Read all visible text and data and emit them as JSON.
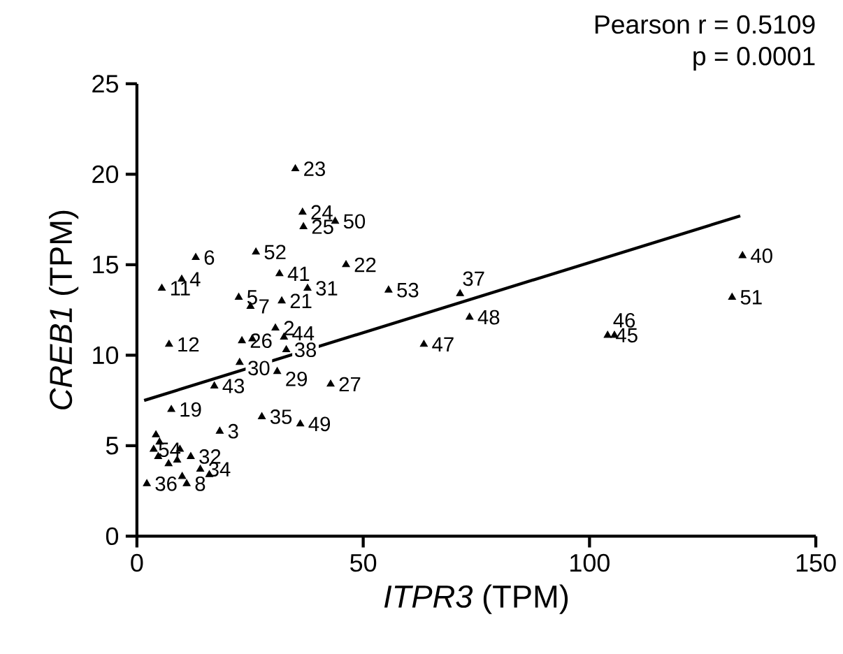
{
  "chart_data": {
    "type": "scatter",
    "xlabel": "*ITPR3* (TPM)",
    "ylabel": "*CREB1* (TPM)",
    "xlim": [
      0,
      150
    ],
    "xticks": [
      0,
      50,
      100,
      150
    ],
    "ylim": [
      0,
      25
    ],
    "yticks": [
      0,
      5,
      10,
      15,
      20,
      25
    ],
    "grid": false,
    "marker": "triangle",
    "series": [
      {
        "color": "#000000",
        "x": [
          35.0,
          36.6,
          36.8,
          43.8,
          13.0,
          26.3,
          31.5,
          46.2,
          5.5,
          9.9,
          22.5,
          25.1,
          32.0,
          37.7,
          30.6,
          32.5,
          7.1,
          23.2,
          25.5,
          17.1,
          22.7,
          31.0,
          33.0,
          7.6,
          18.3,
          27.6,
          36.1,
          55.6,
          71.4,
          73.5,
          63.4,
          42.8,
          133.8,
          131.5,
          104.0,
          105.5,
          4.2,
          11.9,
          14.0,
          11.0,
          2.2,
          10.0,
          3.7,
          4.7,
          8.9,
          16.0,
          5.0,
          9.5,
          7.0
        ],
        "values": [
          20.3,
          17.9,
          17.1,
          17.4,
          15.4,
          15.7,
          14.5,
          15.0,
          13.7,
          14.2,
          13.2,
          12.7,
          13.0,
          13.7,
          11.5,
          11.0,
          10.6,
          10.8,
          10.9,
          8.3,
          9.6,
          9.1,
          10.3,
          7.0,
          5.8,
          6.6,
          6.2,
          13.6,
          13.4,
          12.1,
          10.6,
          8.4,
          15.5,
          13.2,
          11.1,
          11.1,
          5.6,
          4.4,
          3.7,
          2.9,
          2.9,
          3.3,
          4.8,
          4.4,
          4.2,
          3.4,
          5.2,
          4.8,
          4.0
        ]
      },
      {
        "type": "line",
        "color": "#000000",
        "line_style": "solid",
        "marker": "none",
        "x": [
          1.6,
          133.3
        ],
        "values": [
          7.5,
          17.7
        ]
      }
    ],
    "annotations": [
      "Pearson r = 0.5109",
      "p = 0.0001",
      {
        "text": "23",
        "x": 35.0,
        "y": 20.3
      },
      {
        "text": "24",
        "x": 36.6,
        "y": 17.9
      },
      {
        "text": "25",
        "x": 36.8,
        "y": 17.1
      },
      {
        "text": "50",
        "x": 43.8,
        "y": 17.4
      },
      {
        "text": "6",
        "x": 13.0,
        "y": 15.4
      },
      {
        "text": "52",
        "x": 26.3,
        "y": 15.7
      },
      {
        "text": "41",
        "x": 31.5,
        "y": 14.5
      },
      {
        "text": "22",
        "x": 46.2,
        "y": 15.0
      },
      {
        "text": "11",
        "x": 5.5,
        "y": 13.7
      },
      {
        "text": "4",
        "x": 9.9,
        "y": 14.2
      },
      {
        "text": "5",
        "x": 22.5,
        "y": 13.2
      },
      {
        "text": "7",
        "x": 25.1,
        "y": 12.7
      },
      {
        "text": "21",
        "x": 32.0,
        "y": 13.0
      },
      {
        "text": "31",
        "x": 37.7,
        "y": 13.7
      },
      {
        "text": "2",
        "x": 30.6,
        "y": 11.5
      },
      {
        "text": "44",
        "x": 32.5,
        "y": 11.0
      },
      {
        "text": "12",
        "x": 7.1,
        "y": 10.6
      },
      {
        "text": "26",
        "x": 23.2,
        "y": 10.8
      },
      {
        "text": "43",
        "x": 17.1,
        "y": 8.3
      },
      {
        "text": "30",
        "x": 22.7,
        "y": 9.6
      },
      {
        "text": "29",
        "x": 31.0,
        "y": 9.1
      },
      {
        "text": "38",
        "x": 33.0,
        "y": 10.3
      },
      {
        "text": "19",
        "x": 7.6,
        "y": 7.0
      },
      {
        "text": "3",
        "x": 18.3,
        "y": 5.8
      },
      {
        "text": "35",
        "x": 27.6,
        "y": 6.6
      },
      {
        "text": "49",
        "x": 36.1,
        "y": 6.2
      },
      {
        "text": "53",
        "x": 55.6,
        "y": 13.6
      },
      {
        "text": "37",
        "x": 71.4,
        "y": 13.4
      },
      {
        "text": "48",
        "x": 73.5,
        "y": 12.1
      },
      {
        "text": "47",
        "x": 63.4,
        "y": 10.6
      },
      {
        "text": "27",
        "x": 42.8,
        "y": 8.4
      },
      {
        "text": "40",
        "x": 133.8,
        "y": 15.5
      },
      {
        "text": "51",
        "x": 131.5,
        "y": 13.2
      },
      {
        "text": "45",
        "x": 104.0,
        "y": 11.1
      },
      {
        "text": "46",
        "x": 105.5,
        "y": 11.1
      },
      {
        "text": "54",
        "x": 4.2,
        "y": 5.6
      },
      {
        "text": "32",
        "x": 11.9,
        "y": 4.4
      },
      {
        "text": "34",
        "x": 14.0,
        "y": 3.7
      },
      {
        "text": "8",
        "x": 11.0,
        "y": 2.9
      },
      {
        "text": "36",
        "x": 2.2,
        "y": 2.9
      }
    ]
  }
}
